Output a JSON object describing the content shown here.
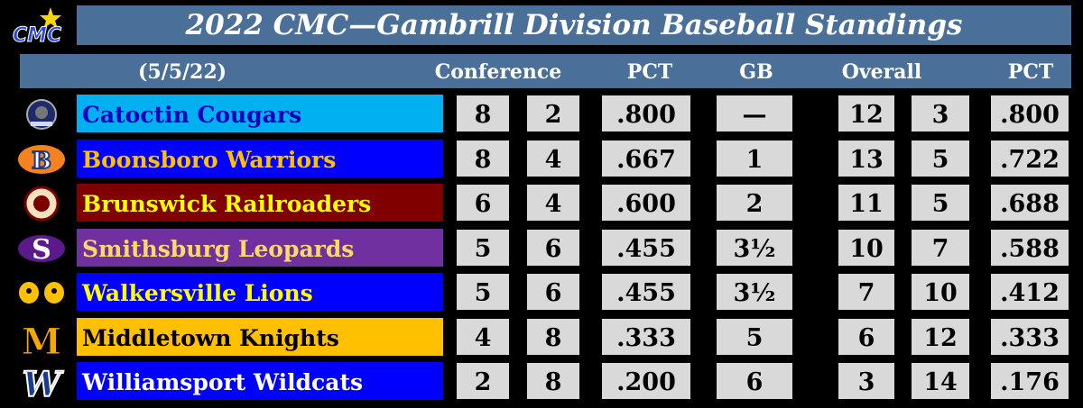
{
  "header": {
    "title": "2022 CMC—Gambrill Division Baseball Standings",
    "logo_text": "CMC",
    "date": "(5/5/22)",
    "col_conference": "Conference",
    "col_pct": "PCT",
    "col_gb": "GB",
    "col_overall": "Overall",
    "col_pct2": "PCT"
  },
  "colors": {
    "header_bg": "#4a7099",
    "cell_bg": "#d9d9d9"
  },
  "teams": [
    {
      "name": "Catoctin Cougars",
      "bg": "#00b0f0",
      "fg": "#0000c0",
      "logo": "cougar-icon",
      "cw": "8",
      "cl": "2",
      "cpct": ".800",
      "gb": "—",
      "ow": "12",
      "ol": "3",
      "opct": ".800"
    },
    {
      "name": "Boonsboro Warriors",
      "bg": "#0000ff",
      "fg": "#ffc000",
      "logo": "warrior-icon",
      "cw": "8",
      "cl": "4",
      "cpct": ".667",
      "gb": "1",
      "ow": "13",
      "ol": "5",
      "opct": ".722"
    },
    {
      "name": "Brunswick Railroaders",
      "bg": "#800000",
      "fg": "#ffff00",
      "logo": "railroad-seal-icon",
      "cw": "6",
      "cl": "4",
      "cpct": ".600",
      "gb": "2",
      "ow": "11",
      "ol": "5",
      "opct": ".688"
    },
    {
      "name": "Smithsburg Leopards",
      "bg": "#7030a0",
      "fg": "#ffd966",
      "logo": "letter-s-icon",
      "cw": "5",
      "cl": "6",
      "cpct": ".455",
      "gb": "3½",
      "ow": "10",
      "ol": "7",
      "opct": ".588"
    },
    {
      "name": "Walkersville Lions",
      "bg": "#0000ff",
      "fg": "#ffff00",
      "logo": "lion-icon",
      "cw": "5",
      "cl": "6",
      "cpct": ".455",
      "gb": "3½",
      "ow": "7",
      "ol": "10",
      "opct": ".412"
    },
    {
      "name": "Middletown Knights",
      "bg": "#ffc000",
      "fg": "#000000",
      "logo": "letter-m-icon",
      "cw": "4",
      "cl": "8",
      "cpct": ".333",
      "gb": "5",
      "ow": "6",
      "ol": "12",
      "opct": ".333"
    },
    {
      "name": "Williamsport Wildcats",
      "bg": "#0000ff",
      "fg": "#ffffff",
      "logo": "letter-w-icon",
      "cw": "2",
      "cl": "8",
      "cpct": ".200",
      "gb": "6",
      "ow": "3",
      "ol": "14",
      "opct": ".176"
    }
  ]
}
